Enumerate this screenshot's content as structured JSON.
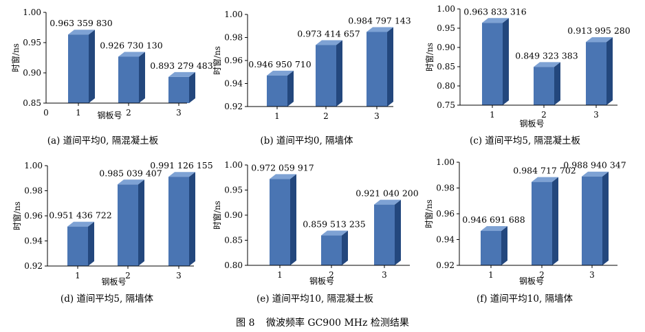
{
  "figure_caption": {
    "label": "图 8",
    "text": "微波频率 GC900 MHz 检测结果"
  },
  "colors": {
    "bar_front": "#4a75b3",
    "bar_side": "#23477d",
    "bar_top": "#7ea2d4",
    "axis": "#000000"
  },
  "chart_data": [
    {
      "type": "bar",
      "id": "a",
      "caption": "(a) 道间平均0, 隔混凝土板",
      "xlabel": "钢板号",
      "ylabel": "时窗/ns",
      "categories": [
        "1",
        "2",
        "3"
      ],
      "values": [
        0.96335983,
        0.92673013,
        0.893279483
      ],
      "data_labels": [
        "0.963 359 830",
        "0.926 730 130",
        "0.893 279 483"
      ],
      "ylim": [
        0.85,
        1.0
      ],
      "ytick_labels": [
        "0.85",
        "0.90",
        "0.95",
        "1.00"
      ],
      "x_zero_label": "0"
    },
    {
      "type": "bar",
      "id": "b",
      "caption": "(b) 道间平均0, 隔墙体",
      "xlabel": "",
      "ylabel": "时窗/ns",
      "categories": [
        "1",
        "2",
        "3"
      ],
      "values": [
        0.94695071,
        0.973414657,
        0.984797143
      ],
      "data_labels": [
        "0.946 950 710",
        "0.973 414 657",
        "0.984 797 143"
      ],
      "ylim": [
        0.92,
        1.0
      ],
      "ytick_labels": [
        "0.92",
        "0.94",
        "0.96",
        "0.98",
        "1.00"
      ]
    },
    {
      "type": "bar",
      "id": "c",
      "caption": "(c) 道间平均5, 隔混凝土板",
      "xlabel": "钢板号",
      "ylabel": "时窗/ns",
      "categories": [
        "1",
        "2",
        "3"
      ],
      "values": [
        0.963833316,
        0.849323383,
        0.91399528
      ],
      "data_labels": [
        "0.963 833 316",
        "0.849 323 383",
        "0.913 995 280"
      ],
      "ylim": [
        0.75,
        1.0
      ],
      "ytick_labels": [
        "0.75",
        "0.80",
        "0.85",
        "0.90",
        "0.95",
        "1.00"
      ]
    },
    {
      "type": "bar",
      "id": "d",
      "caption": "(d) 道间平均5, 隔墙体",
      "xlabel": "钢板号",
      "ylabel": "时窗/ns",
      "categories": [
        "1",
        "2",
        "3"
      ],
      "values": [
        0.951436722,
        0.985039407,
        0.991126155
      ],
      "data_labels": [
        "0.951 436 722",
        "0.985 039 407",
        "0.991 126 155"
      ],
      "ylim": [
        0.92,
        1.0
      ],
      "ytick_labels": [
        "0.92",
        "0.94",
        "0.96",
        "0.98",
        "1.00"
      ]
    },
    {
      "type": "bar",
      "id": "e",
      "caption": "(e) 道间平均10, 隔混凝土板",
      "xlabel": "钢板号",
      "ylabel": "时窗/ns",
      "categories": [
        "1",
        "2",
        "3"
      ],
      "values": [
        0.972059917,
        0.859513235,
        0.9210402
      ],
      "data_labels": [
        "0.972 059 917",
        "0.859 513 235",
        "0.921 040 200"
      ],
      "ylim": [
        0.8,
        1.0
      ],
      "ytick_labels": [
        "0.80",
        "0.85",
        "0.90",
        "0.95",
        "1.00"
      ]
    },
    {
      "type": "bar",
      "id": "f",
      "caption": "(f) 道间平均10, 隔墙体",
      "xlabel": "钢板号",
      "ylabel": "时窗/ns",
      "categories": [
        "1",
        "2",
        "3"
      ],
      "values": [
        0.946691688,
        0.984717702,
        0.988940347
      ],
      "data_labels": [
        "0.946 691 688",
        "0.984 717 702",
        "0.988 940 347"
      ],
      "ylim": [
        0.92,
        1.0
      ],
      "ytick_labels": [
        "0.92",
        "0.94",
        "0.96",
        "0.98",
        "1.00"
      ]
    }
  ]
}
